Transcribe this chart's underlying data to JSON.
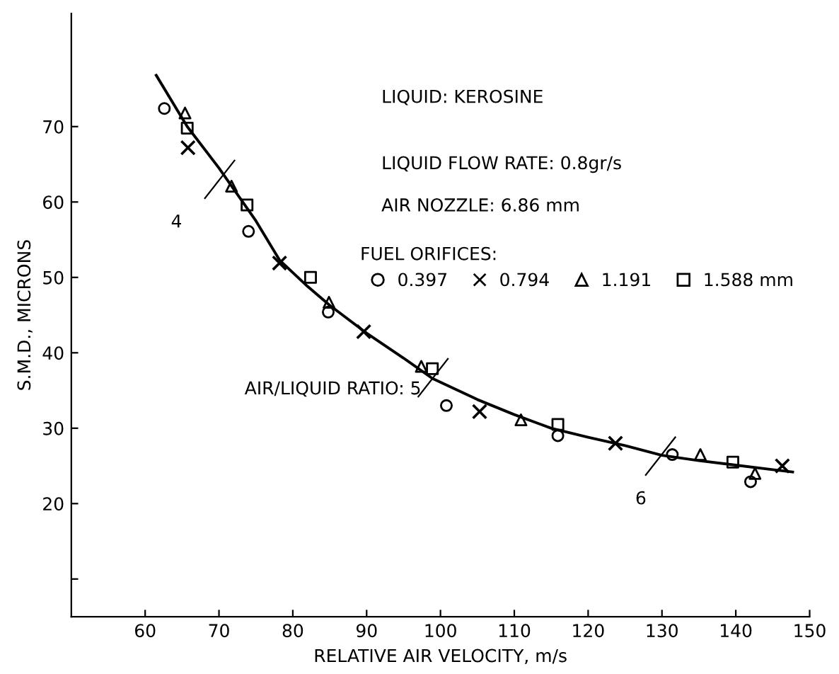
{
  "chart_data": {
    "type": "scatter",
    "xlabel": "RELATIVE AIR VELOCITY, m/s",
    "ylabel": "S.M.D., MICRONS",
    "xlim": [
      50,
      150
    ],
    "xticks": [
      60,
      70,
      80,
      90,
      100,
      110,
      120,
      130,
      140,
      150
    ],
    "ylim": [
      5,
      85
    ],
    "yticks": [
      {
        "value": 10,
        "label": null
      },
      20,
      30,
      40,
      50,
      60,
      70
    ],
    "grid": false,
    "legend": "top right",
    "legend_title": "FUEL ORIFICES:",
    "series": [
      {
        "name": "0.397",
        "color": "#000000",
        "marker": "circle",
        "x": [
          62.6,
          74.0,
          84.8,
          100.8,
          115.9,
          131.4,
          142.0
        ],
        "values": [
          72.4,
          56.1,
          45.4,
          33.0,
          29.0,
          26.5,
          22.9
        ]
      },
      {
        "name": "0.794",
        "color": "#000000",
        "marker": "cross",
        "x": [
          65.8,
          78.2,
          89.6,
          105.3,
          123.7,
          146.3
        ],
        "values": [
          67.2,
          51.9,
          42.8,
          32.2,
          28.0,
          25.0
        ]
      },
      {
        "name": "1.191",
        "color": "#000000",
        "marker": "triangle",
        "x": [
          65.4,
          71.7,
          84.9,
          97.4,
          110.9,
          135.2,
          142.6
        ],
        "values": [
          71.8,
          62.1,
          46.7,
          38.2,
          31.1,
          26.5,
          24.0
        ]
      },
      {
        "name": "1.588 mm",
        "color": "#000000",
        "marker": "square",
        "x": [
          65.7,
          73.8,
          82.4,
          98.9,
          115.9,
          139.6
        ],
        "values": [
          69.8,
          59.6,
          50.0,
          37.9,
          30.5,
          25.5
        ]
      },
      {
        "type": "line",
        "color": "#000000",
        "marker": "none",
        "line_style": "solid",
        "x": [
          61.5,
          65.7,
          70,
          75,
          78.2,
          82,
          85,
          90,
          95,
          98.9,
          105,
          110,
          115,
          120,
          125,
          130,
          135,
          140,
          145,
          147.7
        ],
        "values": [
          76.8,
          70.0,
          64.5,
          57.5,
          52.3,
          48.8,
          46.3,
          42.6,
          39.3,
          36.6,
          33.8,
          31.8,
          30.0,
          28.8,
          27.7,
          26.4,
          25.7,
          25.1,
          24.5,
          24.2
        ]
      }
    ],
    "annotations": [
      "LIQUID: KEROSINE",
      "LIQUID FLOW RATE: 0.8gr/s",
      "AIR NOZZLE: 6.86 mm",
      {
        "text": "4",
        "x": 70.1,
        "y": 63.0
      },
      {
        "text": "AIR/LIQUID RATIO: 5",
        "x": 99.0,
        "y": 36.7
      },
      {
        "text": "6",
        "x": 129.8,
        "y": 26.3
      }
    ]
  }
}
